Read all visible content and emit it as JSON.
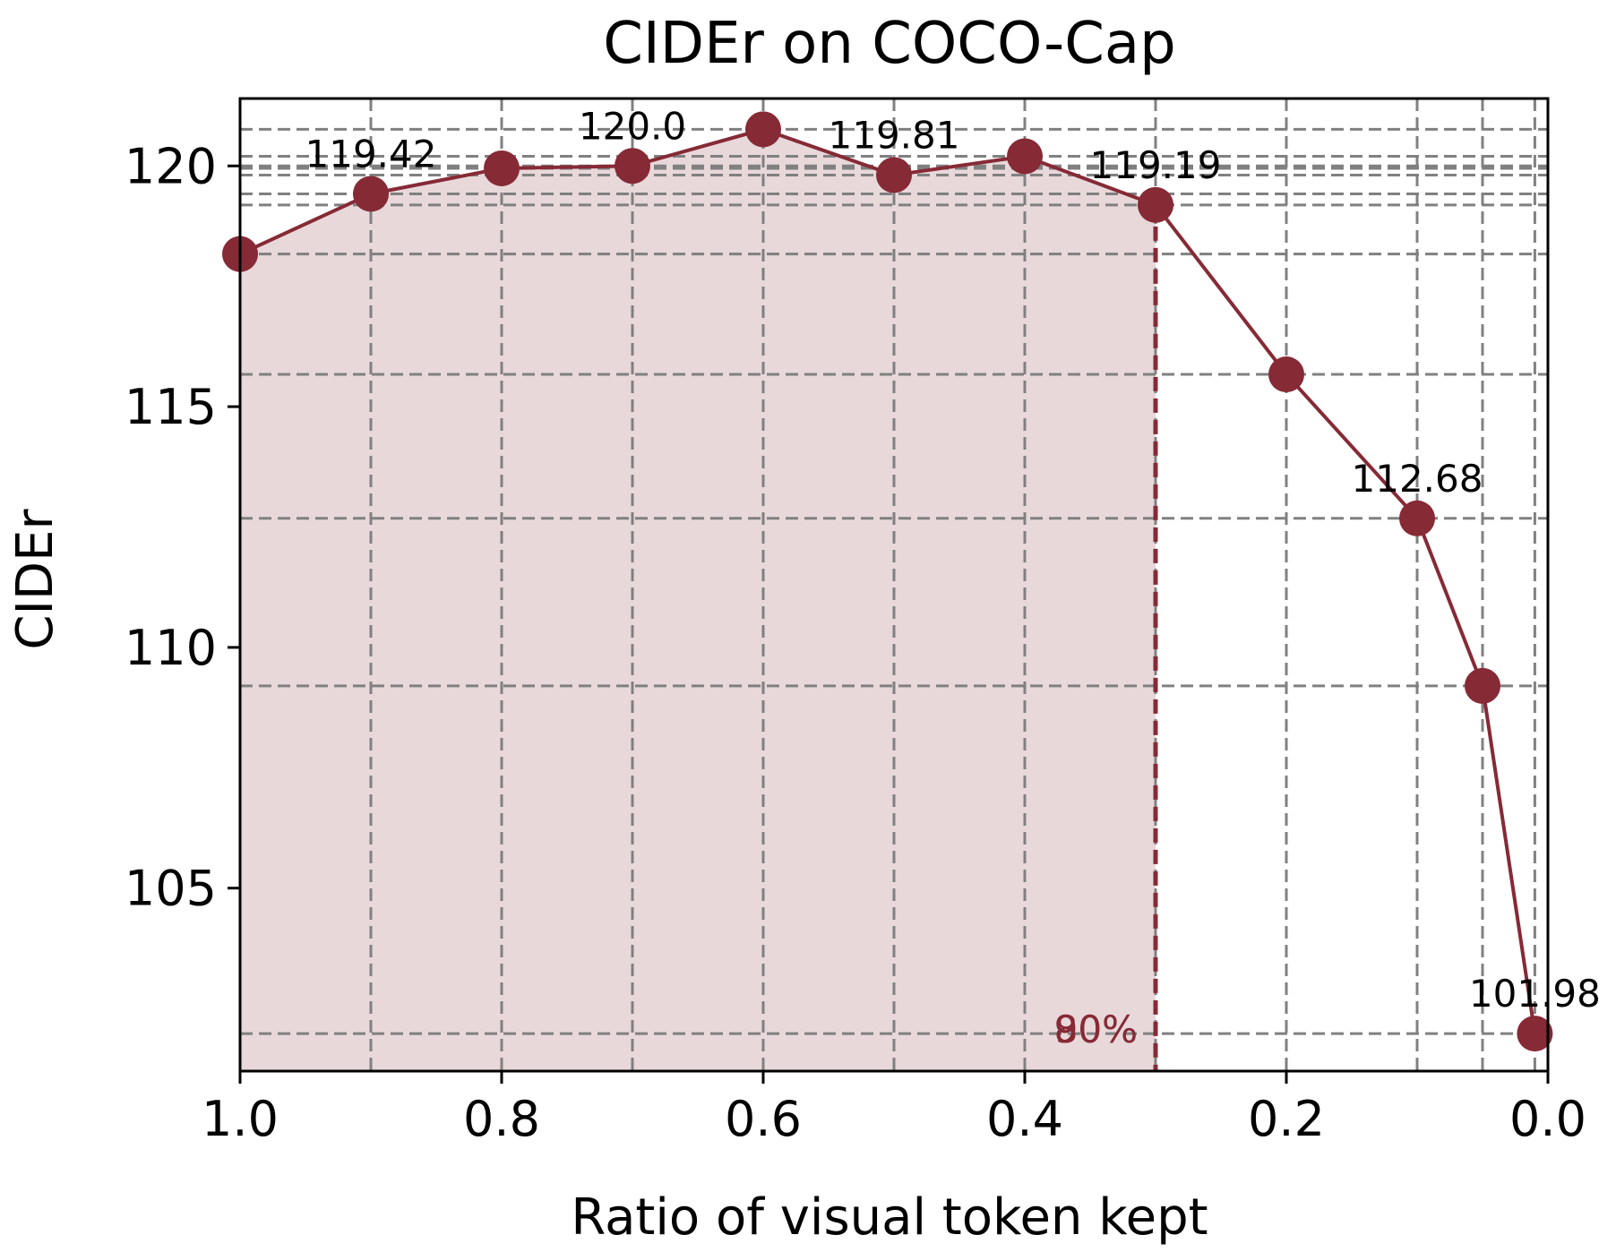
{
  "chart_data": {
    "type": "line",
    "title": "CIDEr on COCO-Cap",
    "xlabel": "Ratio of visual token kept",
    "ylabel": "CIDEr",
    "xlim": [
      1.0,
      0.0
    ],
    "ylim": [
      101.2,
      121.4
    ],
    "x_reversed": true,
    "grid": true,
    "xticks": [
      1.0,
      0.8,
      0.6,
      0.4,
      0.2,
      0.0
    ],
    "xtick_labels": [
      "1.0",
      "0.8",
      "0.6",
      "0.4",
      "0.2",
      "0.0"
    ],
    "yticks": [
      105,
      110,
      115,
      120
    ],
    "ytick_labels": [
      "105",
      "110",
      "115",
      "120"
    ],
    "series": [
      {
        "color": "#862a36",
        "x": [
          1.0,
          0.9,
          0.8,
          0.7,
          0.6,
          0.5,
          0.4,
          0.3,
          0.2,
          0.1,
          0.05,
          0.01
        ],
        "y": [
          118.17,
          119.42,
          119.95,
          120.0,
          120.76,
          119.81,
          120.2,
          119.19,
          115.67,
          112.68,
          109.2,
          101.98
        ]
      }
    ],
    "data_labels": [
      {
        "x": 0.9,
        "y": 119.42,
        "text": "119.42"
      },
      {
        "x": 0.7,
        "y": 120.0,
        "text": "120.0"
      },
      {
        "x": 0.5,
        "y": 119.81,
        "text": "119.81"
      },
      {
        "x": 0.3,
        "y": 119.19,
        "text": "119.19"
      },
      {
        "x": 0.1,
        "y": 112.68,
        "text": "112.68"
      },
      {
        "x": 0.01,
        "y": 101.98,
        "text": "101.98"
      }
    ],
    "threshold": {
      "x": 0.3,
      "labels": [
        "90%",
        "80%"
      ],
      "color": "#862a36",
      "shade_color": "#e8d8da"
    }
  }
}
